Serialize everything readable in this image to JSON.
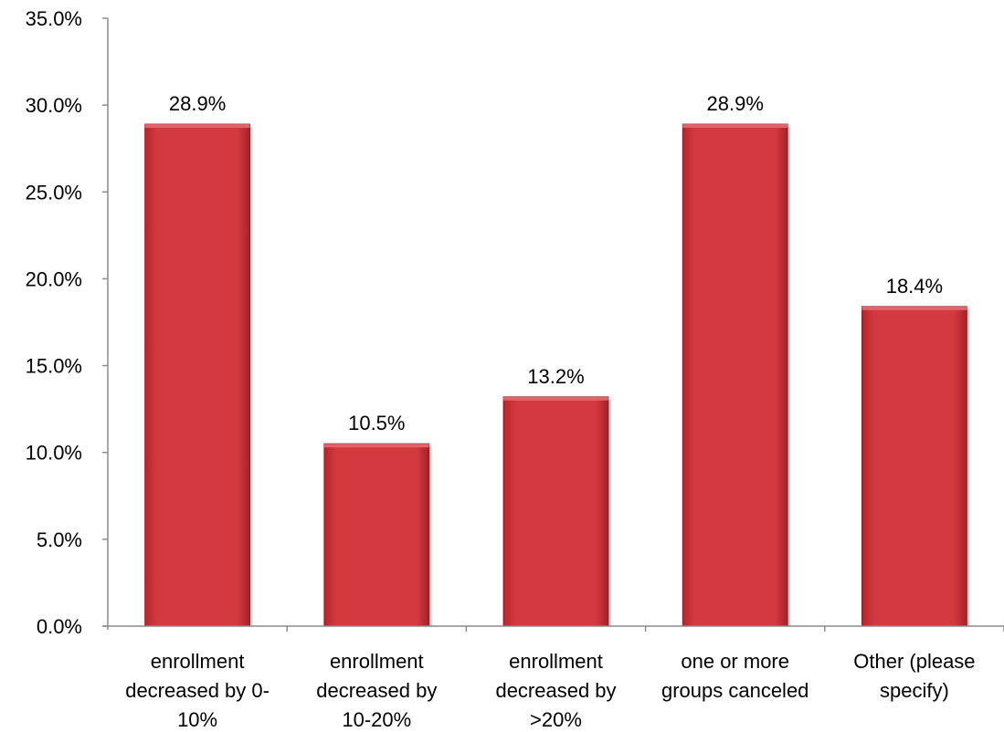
{
  "chart_data": {
    "type": "bar",
    "categories": [
      [
        "enrollment",
        "decreased by 0-",
        "10%"
      ],
      [
        "enrollment",
        "decreased by",
        "10-20%"
      ],
      [
        "enrollment",
        "decreased by",
        ">20%"
      ],
      [
        "one or more",
        "groups canceled"
      ],
      [
        "Other (please",
        "specify)"
      ]
    ],
    "values": [
      28.9,
      10.5,
      13.2,
      28.9,
      18.4
    ],
    "data_labels": [
      "28.9%",
      "10.5%",
      "13.2%",
      "28.9%",
      "18.4%"
    ],
    "yticks": [
      0,
      5,
      10,
      15,
      20,
      25,
      30,
      35
    ],
    "ytick_labels": [
      "0.0%",
      "5.0%",
      "10.0%",
      "15.0%",
      "20.0%",
      "25.0%",
      "30.0%",
      "35.0%"
    ],
    "ylim": [
      0,
      35
    ],
    "grid": false,
    "legend": "none",
    "title": "",
    "xlabel": "",
    "ylabel": "",
    "bar_color": "#d03238",
    "bar_edge_color": "#8e1a1f"
  }
}
